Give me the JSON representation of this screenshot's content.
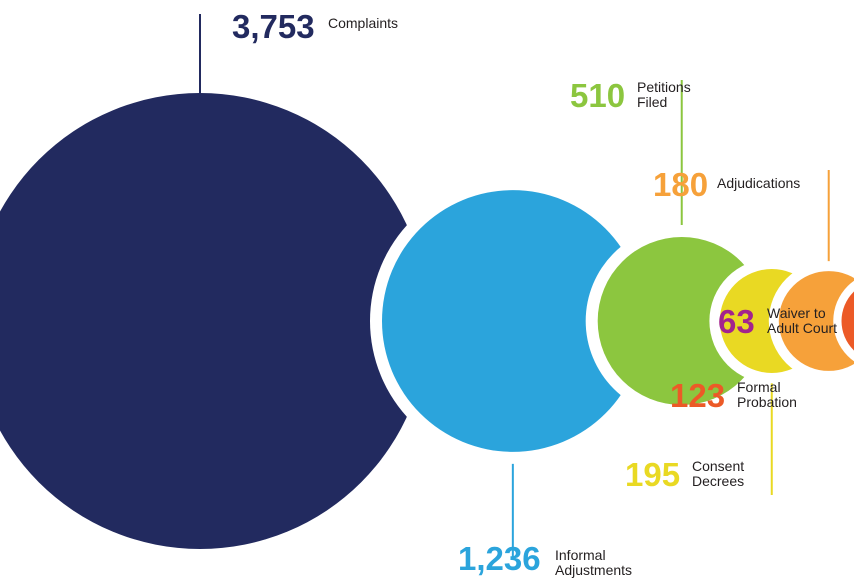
{
  "chart_data": {
    "type": "bubble",
    "title": "",
    "series": [
      {
        "value": 3753,
        "value_label": "3,753",
        "label_lines": [
          "Complaints"
        ],
        "color": "#222a5f"
      },
      {
        "value": 1236,
        "value_label": "1,236",
        "label_lines": [
          "Informal",
          "Adjustments"
        ],
        "color": "#2ba4dc"
      },
      {
        "value": 510,
        "value_label": "510",
        "label_lines": [
          "Petitions",
          "Filed"
        ],
        "color": "#8cc63f"
      },
      {
        "value": 195,
        "value_label": "195",
        "label_lines": [
          "Consent",
          "Decrees"
        ],
        "color": "#e9d923"
      },
      {
        "value": 180,
        "value_label": "180",
        "label_lines": [
          "Adjudications"
        ],
        "color": "#f6a13a"
      },
      {
        "value": 123,
        "value_label": "123",
        "label_lines": [
          "Formal",
          "Probation"
        ],
        "color": "#ec5a27"
      },
      {
        "value": 63,
        "value_label": "63",
        "label_lines": [
          "Waiver to",
          "Adult Court"
        ],
        "color": "#a3238e"
      }
    ]
  }
}
